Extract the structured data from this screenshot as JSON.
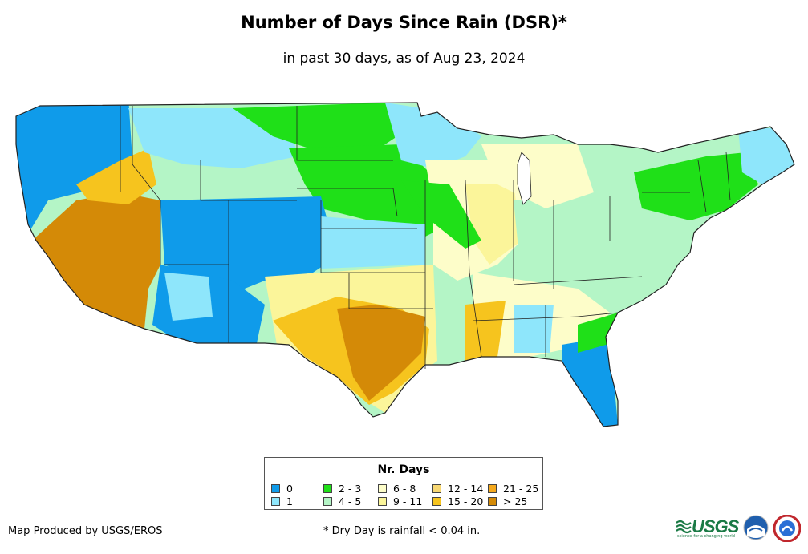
{
  "header": {
    "title": "Number of Days Since Rain (DSR)*",
    "subtitle": "in past 30 days, as of Aug 23, 2024"
  },
  "legend": {
    "title": "Nr. Days",
    "items": [
      {
        "label": "0",
        "color": "#0f9bea"
      },
      {
        "label": "1",
        "color": "#8ee6fb"
      },
      {
        "label": "2 - 3",
        "color": "#1fe018"
      },
      {
        "label": "4 - 5",
        "color": "#b4f5c6"
      },
      {
        "label": "6 - 8",
        "color": "#fdfdc9"
      },
      {
        "label": "9 - 11",
        "color": "#fbf59a"
      },
      {
        "label": "12 - 14",
        "color": "#f8d873"
      },
      {
        "label": "15 - 20",
        "color": "#f6c41e"
      },
      {
        "label": "21 - 25",
        "color": "#f5a91d"
      },
      {
        "label": "> 25",
        "color": "#d48a07"
      }
    ]
  },
  "footer": {
    "credit": "Map Produced by USGS/EROS",
    "note": "* Dry Day is rainfall < 0.04 in."
  },
  "logos": {
    "usgs_text": "USGS",
    "usgs_tagline": "science for a changing world",
    "noaa_text": "NOAA"
  }
}
